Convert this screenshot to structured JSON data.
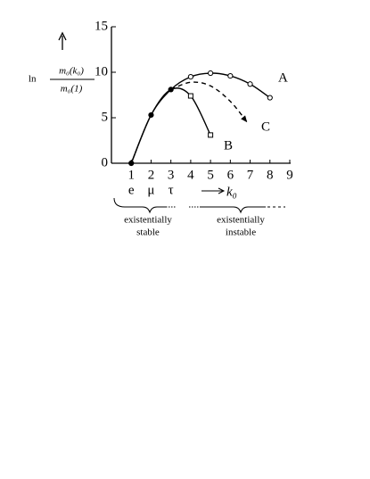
{
  "chart_data": {
    "type": "line",
    "x_label": "k₀",
    "y_label": {
      "prefix": "ln",
      "numerator": "m₀(k₀)",
      "denominator": "m₀(1)"
    },
    "particles": [
      "e",
      "μ",
      "τ"
    ],
    "groups": [
      {
        "lines": [
          "existentially",
          "stable"
        ]
      },
      {
        "lines": [
          "existentially",
          "instable"
        ]
      }
    ],
    "xlim": [
      0,
      9
    ],
    "xticks": [
      1,
      2,
      3,
      4,
      5,
      6,
      7,
      8,
      9
    ],
    "ylim": [
      0,
      15
    ],
    "yticks": [
      0,
      5,
      10,
      15
    ],
    "series": [
      {
        "name": "A",
        "color": "#000000",
        "dash": false,
        "marker": "circle",
        "marker_fills": [
          "#000000",
          "#000000",
          "#000000",
          "#ffffff",
          "#ffffff",
          "#ffffff",
          "#ffffff",
          "#ffffff"
        ],
        "x": [
          1,
          2,
          3,
          4,
          5,
          6,
          7,
          8
        ],
        "values": [
          0,
          5.3,
          8.1,
          9.5,
          9.9,
          9.6,
          8.7,
          7.2
        ]
      },
      {
        "name": "B",
        "color": "#000000",
        "dash": false,
        "marker": "square",
        "marker_fills": [
          null,
          null,
          null,
          "#ffffff",
          "#ffffff"
        ],
        "x": [
          1,
          2,
          3,
          4,
          5
        ],
        "values": [
          0,
          5.3,
          8.1,
          7.4,
          3.1
        ]
      },
      {
        "name": "C",
        "color": "#000000",
        "dash": true,
        "marker": "arrow",
        "x": [
          3,
          4,
          5,
          6,
          6.85
        ],
        "values": [
          8.1,
          8.9,
          8.5,
          6.8,
          4.5
        ]
      }
    ]
  }
}
